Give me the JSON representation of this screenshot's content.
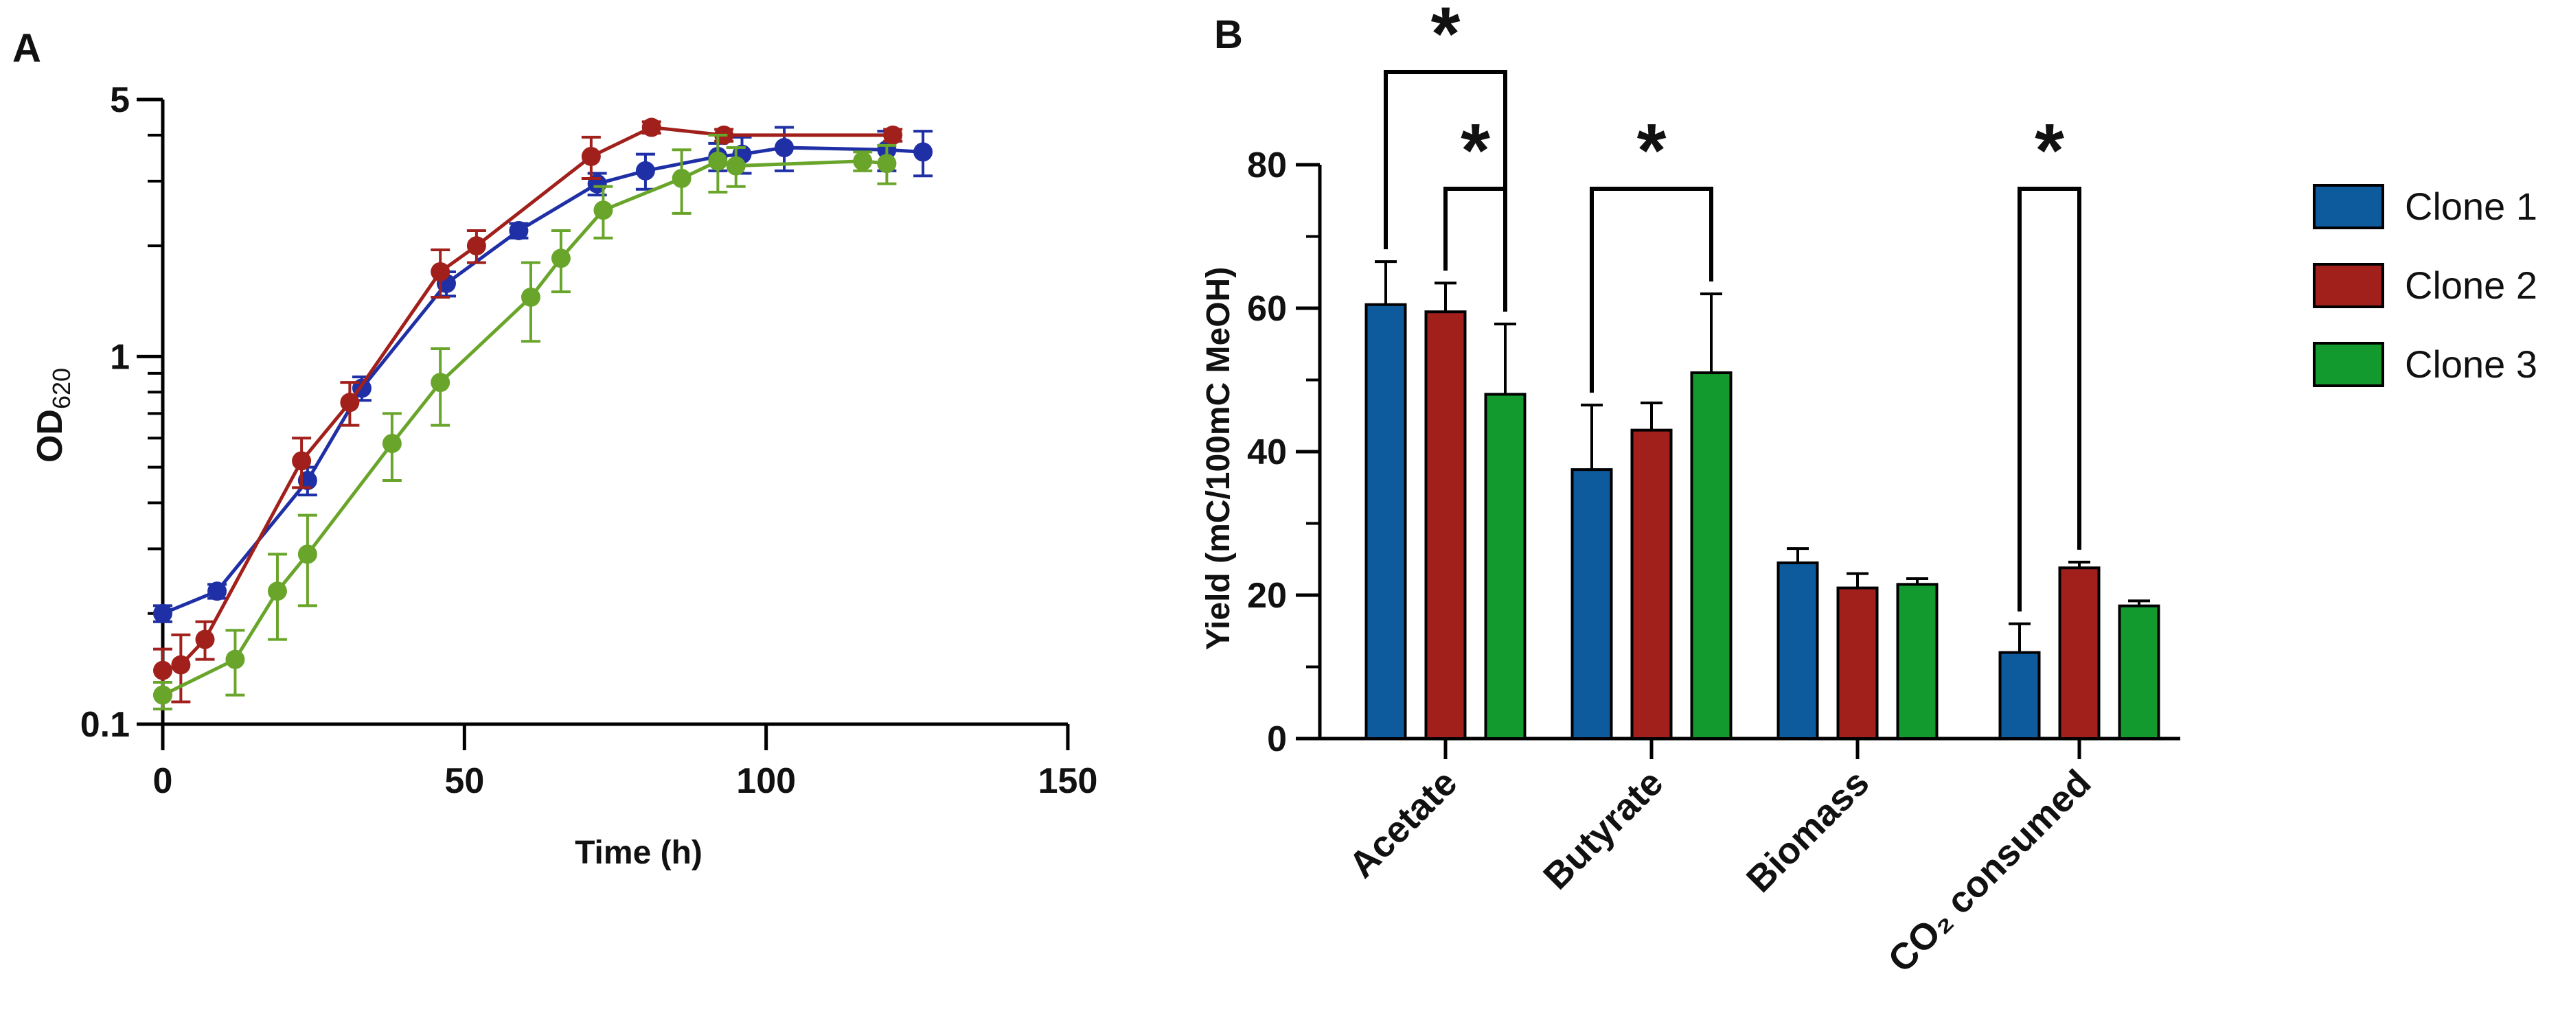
{
  "chart_data": [
    {
      "type": "line",
      "panel_label": "A",
      "xlabel": "Time (h)",
      "ylabel_main": "OD",
      "ylabel_sub": "620",
      "y_scale": "log",
      "xlim": [
        0,
        150
      ],
      "ylim": [
        0.1,
        5
      ],
      "x_ticks": [
        0,
        50,
        100,
        150
      ],
      "x_tick_labels": [
        "0",
        "50",
        "100",
        "150"
      ],
      "y_ticks": [
        0.1,
        1,
        5
      ],
      "y_tick_labels": [
        "0.1",
        "1",
        "5"
      ],
      "series": [
        {
          "name": "Clone 1",
          "color": "#1f2fa6",
          "x": [
            0,
            9,
            24,
            33,
            47,
            59,
            72,
            80,
            92,
            96,
            103,
            120,
            126
          ],
          "y": [
            0.2,
            0.23,
            0.46,
            0.82,
            1.58,
            2.2,
            2.95,
            3.2,
            3.5,
            3.55,
            3.7,
            3.65,
            3.6
          ],
          "err": [
            0.01,
            0.01,
            0.04,
            0.06,
            0.12,
            0.1,
            0.2,
            0.35,
            0.3,
            0.4,
            0.5,
            0.45,
            0.5
          ]
        },
        {
          "name": "Clone 2",
          "color": "#a1201b",
          "x": [
            0,
            3,
            7,
            23,
            31,
            46,
            52,
            71,
            81,
            93,
            121
          ],
          "y": [
            0.14,
            0.145,
            0.17,
            0.52,
            0.75,
            1.7,
            2.0,
            3.5,
            4.2,
            4.0,
            4.0
          ],
          "err": [
            0.02,
            0.03,
            0.02,
            0.08,
            0.1,
            0.25,
            0.2,
            0.45,
            0.15,
            0.15,
            0.15
          ]
        },
        {
          "name": "Clone 3",
          "color": "#6aa52b",
          "x": [
            0,
            12,
            19,
            24,
            38,
            46,
            61,
            66,
            73,
            86,
            92,
            95,
            116,
            120
          ],
          "y": [
            0.12,
            0.15,
            0.23,
            0.29,
            0.58,
            0.85,
            1.45,
            1.85,
            2.5,
            3.05,
            3.4,
            3.3,
            3.4,
            3.35
          ],
          "err": [
            0.01,
            0.03,
            0.06,
            0.08,
            0.12,
            0.2,
            0.35,
            0.35,
            0.4,
            0.6,
            0.6,
            0.4,
            0.2,
            0.4
          ]
        }
      ]
    },
    {
      "type": "bar",
      "panel_label": "B",
      "ylabel": "Yield (mC/100mC MeOH)",
      "ylim": [
        0,
        80
      ],
      "y_ticks": [
        0,
        20,
        40,
        60,
        80
      ],
      "y_tick_labels": [
        "0",
        "20",
        "40",
        "60",
        "80"
      ],
      "categories": [
        "Acetate",
        "Butyrate",
        "Biomass",
        "CO₂ consumed"
      ],
      "series": [
        {
          "name": "Clone 1",
          "color": "#0d5a9c",
          "values": [
            60.5,
            37.5,
            24.5,
            12.0
          ],
          "err": [
            6.0,
            9.0,
            2.0,
            4.0
          ]
        },
        {
          "name": "Clone 2",
          "color": "#a1201b",
          "values": [
            59.5,
            43.0,
            21.0,
            23.8
          ],
          "err": [
            4.0,
            3.8,
            2.0,
            0.8
          ]
        },
        {
          "name": "Clone 3",
          "color": "#139a2e",
          "values": [
            48.0,
            51.0,
            21.5,
            18.5
          ],
          "err": [
            9.8,
            11.0,
            0.8,
            0.7
          ]
        }
      ],
      "legend_position": "right",
      "significance": [
        {
          "category": 0,
          "from_series": 0,
          "to_series": 2,
          "label": "*"
        },
        {
          "category": 0,
          "from_series": 1,
          "to_series": 2,
          "label": "*"
        },
        {
          "category": 1,
          "from_series": 0,
          "to_series": 2,
          "label": "*"
        },
        {
          "category": 3,
          "from_series": 0,
          "to_series": 1,
          "label": "*"
        }
      ]
    }
  ]
}
